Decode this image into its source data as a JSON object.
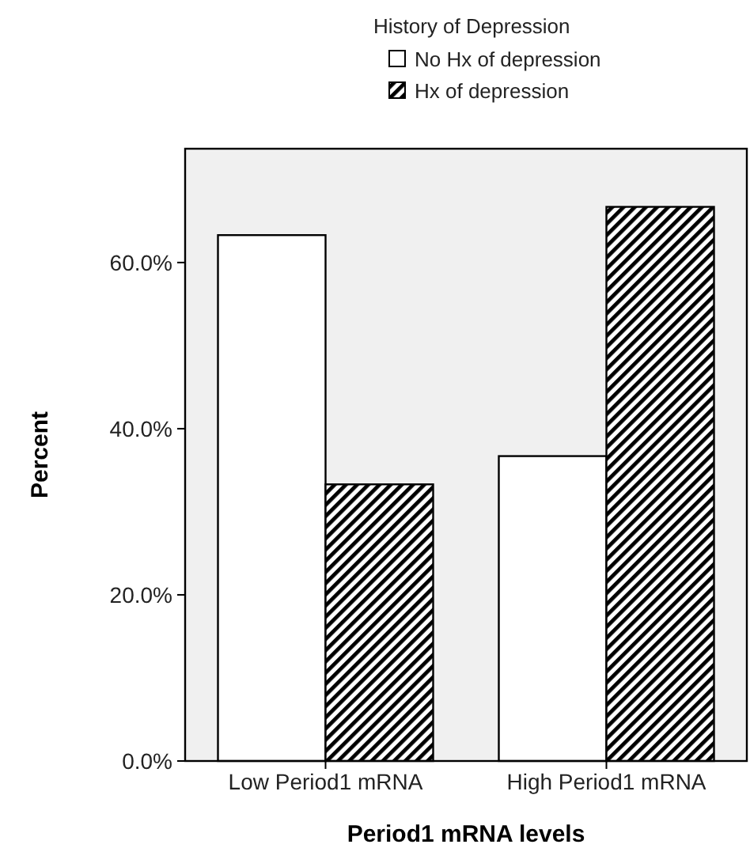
{
  "chart_data": {
    "type": "bar",
    "xlabel": "Period1 mRNA levels",
    "ylabel": "Percent",
    "legend_title": "History of Depression",
    "legend": "top",
    "categories": [
      "Low Period1 mRNA",
      "High Period1 mRNA"
    ],
    "series": [
      {
        "name": "No Hx of depression",
        "color": "#ffffff",
        "values": [
          63.3,
          36.7
        ]
      },
      {
        "name": "Hx of depression",
        "color": "#000000",
        "values": [
          33.3,
          66.7
        ]
      }
    ],
    "ylim": [
      0,
      73.7
    ],
    "yticks": [
      {
        "value": 0,
        "label": "0.0%"
      },
      {
        "value": 20,
        "label": "20.0%"
      },
      {
        "value": 40,
        "label": "40.0%"
      },
      {
        "value": 60,
        "label": "60.0%"
      }
    ],
    "grid": false
  }
}
